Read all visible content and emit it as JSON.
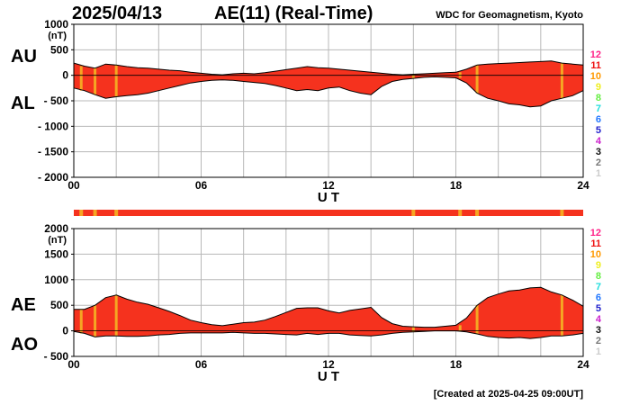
{
  "header": {
    "date": "2025/04/13",
    "title": "AE(11) (Real-Time)",
    "source": "WDC for Geomagnetism, Kyoto"
  },
  "footer": {
    "created": "[Created at 2025-04-25 09:00UT]"
  },
  "colors": {
    "fill": "#f5321e",
    "stripe": "#f5a623",
    "grid": "#b8b8b8",
    "outline": "#000000"
  },
  "legend_scale": {
    "items": [
      {
        "label": "12",
        "color": "#ff2288"
      },
      {
        "label": "11",
        "color": "#ee1111"
      },
      {
        "label": "10",
        "color": "#ff9900"
      },
      {
        "label": "9",
        "color": "#eeee22"
      },
      {
        "label": "8",
        "color": "#66ee44"
      },
      {
        "label": "7",
        "color": "#22dddd"
      },
      {
        "label": "6",
        "color": "#2277ff"
      },
      {
        "label": "5",
        "color": "#2222cc"
      },
      {
        "label": "4",
        "color": "#cc22cc"
      },
      {
        "label": "3",
        "color": "#111111"
      },
      {
        "label": "2",
        "color": "#777777"
      },
      {
        "label": "1",
        "color": "#cccccc"
      }
    ]
  },
  "chart_data": [
    {
      "type": "area",
      "unit": "(nT)",
      "series_labels": [
        "AU",
        "AL"
      ],
      "xlabel": "U T",
      "xlim": [
        0,
        24
      ],
      "ylim": [
        -2000,
        1000
      ],
      "xticks": [
        "00",
        "06",
        "12",
        "18",
        "24"
      ],
      "xtick_values": [
        0,
        6,
        12,
        18,
        24
      ],
      "yticks": [
        "1000",
        "500",
        "0",
        "- 500",
        "- 1000",
        "- 1500",
        "- 2000"
      ],
      "ytick_values": [
        1000,
        500,
        0,
        -500,
        -1000,
        -1500,
        -2000
      ],
      "grid": true,
      "x": [
        0,
        0.5,
        1,
        1.5,
        2,
        2.5,
        3,
        3.5,
        4,
        4.5,
        5,
        5.5,
        6,
        6.5,
        7,
        7.5,
        8,
        8.5,
        9,
        9.5,
        10,
        10.5,
        11,
        11.5,
        12,
        12.5,
        13,
        13.5,
        14,
        14.5,
        15,
        15.5,
        16,
        16.5,
        17,
        17.5,
        18,
        18.5,
        19,
        19.5,
        20,
        20.5,
        21,
        21.5,
        22,
        22.5,
        23,
        23.5,
        24
      ],
      "series": [
        {
          "name": "AU",
          "values": [
            240,
            180,
            140,
            220,
            200,
            170,
            150,
            140,
            120,
            100,
            90,
            60,
            40,
            20,
            10,
            30,
            40,
            30,
            50,
            80,
            110,
            140,
            170,
            150,
            140,
            120,
            100,
            80,
            60,
            40,
            20,
            10,
            20,
            30,
            40,
            50,
            60,
            120,
            200,
            220,
            230,
            240,
            250,
            260,
            270,
            280,
            240,
            220,
            200
          ]
        },
        {
          "name": "AL",
          "values": [
            -250,
            -300,
            -380,
            -450,
            -420,
            -400,
            -380,
            -350,
            -300,
            -250,
            -200,
            -150,
            -120,
            -100,
            -90,
            -100,
            -120,
            -140,
            -160,
            -200,
            -250,
            -300,
            -280,
            -300,
            -250,
            -230,
            -300,
            -350,
            -380,
            -220,
            -120,
            -80,
            -60,
            -40,
            -30,
            -40,
            -50,
            -150,
            -350,
            -450,
            -500,
            -560,
            -580,
            -620,
            -600,
            -500,
            -450,
            -400,
            -300
          ]
        }
      ]
    },
    {
      "type": "area",
      "unit": "(nT)",
      "series_labels": [
        "AE",
        "AO"
      ],
      "xlabel": "U T",
      "xlim": [
        0,
        24
      ],
      "ylim": [
        -500,
        2000
      ],
      "xticks": [
        "00",
        "06",
        "12",
        "18",
        "24"
      ],
      "xtick_values": [
        0,
        6,
        12,
        18,
        24
      ],
      "yticks": [
        "2000",
        "1500",
        "1000",
        "500",
        "0",
        "- 500"
      ],
      "ytick_values": [
        2000,
        1500,
        1000,
        500,
        0,
        -500
      ],
      "grid": true,
      "x": [
        0,
        0.5,
        1,
        1.5,
        2,
        2.5,
        3,
        3.5,
        4,
        4.5,
        5,
        5.5,
        6,
        6.5,
        7,
        7.5,
        8,
        8.5,
        9,
        9.5,
        10,
        10.5,
        11,
        11.5,
        12,
        12.5,
        13,
        13.5,
        14,
        14.5,
        15,
        15.5,
        16,
        16.5,
        17,
        17.5,
        18,
        18.5,
        19,
        19.5,
        20,
        20.5,
        21,
        21.5,
        22,
        22.5,
        23,
        23.5,
        24
      ],
      "series": [
        {
          "name": "AE",
          "values": [
            420,
            420,
            500,
            650,
            700,
            620,
            560,
            520,
            450,
            380,
            300,
            210,
            160,
            120,
            100,
            130,
            160,
            170,
            210,
            280,
            360,
            440,
            450,
            450,
            390,
            350,
            400,
            430,
            460,
            260,
            140,
            90,
            80,
            70,
            70,
            90,
            110,
            250,
            500,
            650,
            720,
            780,
            800,
            840,
            850,
            760,
            700,
            600,
            480
          ]
        },
        {
          "name": "AO",
          "values": [
            -10,
            -50,
            -120,
            -100,
            -100,
            -110,
            -110,
            -100,
            -80,
            -70,
            -50,
            -40,
            -40,
            -40,
            -40,
            -30,
            -40,
            -50,
            -50,
            -60,
            -70,
            -80,
            -50,
            -70,
            -50,
            -50,
            -80,
            -90,
            -100,
            -80,
            -50,
            -30,
            -20,
            -10,
            0,
            0,
            0,
            -20,
            -60,
            -110,
            -130,
            -140,
            -130,
            -150,
            -130,
            -100,
            -100,
            -80,
            -50
          ]
        }
      ]
    }
  ],
  "stripes": [
    0.35,
    1.0,
    2.0,
    16.0,
    18.2,
    19.0,
    23.0
  ]
}
